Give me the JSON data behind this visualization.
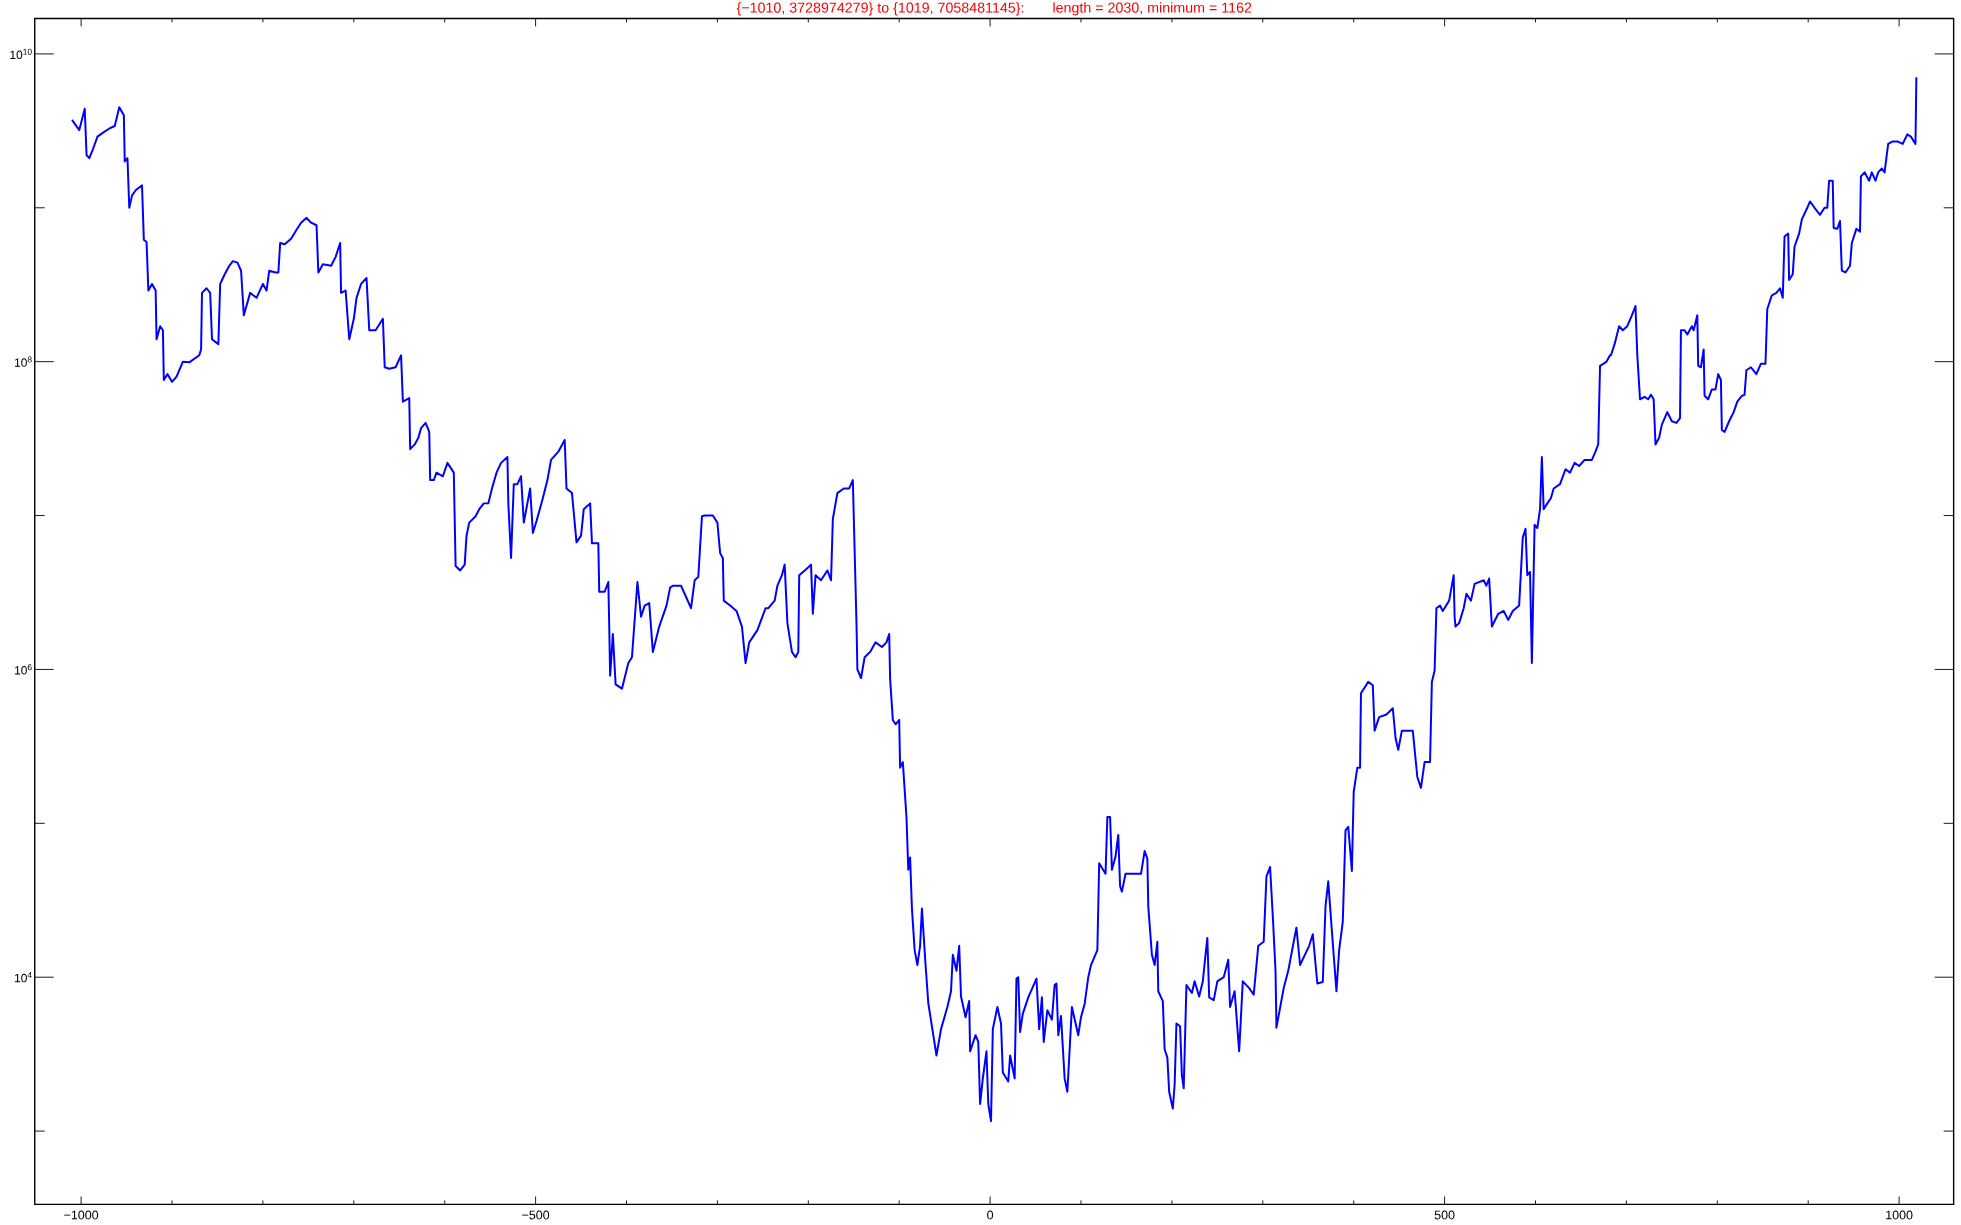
{
  "chart_data": {
    "type": "line",
    "title": "{−1010, 3728974279} to {1019, 7058481145}:",
    "subtitle": "length = 2030, minimum = 1162",
    "x": [
      -1010,
      -1002,
      -996,
      -994,
      -991,
      -987,
      -982,
      -975,
      -968,
      -963,
      -958,
      -953,
      -952,
      -949,
      -947,
      -944,
      -940,
      -933,
      -931,
      -928,
      -926,
      -922,
      -918,
      -917,
      -913,
      -910,
      -909,
      -905,
      -900,
      -895,
      -888,
      -881,
      -870,
      -868,
      -867,
      -862,
      -858,
      -856,
      -849,
      -847,
      -842,
      -837,
      -833,
      -828,
      -824,
      -821,
      -814,
      -807,
      -800,
      -796,
      -793,
      -786,
      -783,
      -781,
      -776,
      -769,
      -763,
      -758,
      -752,
      -747,
      -741,
      -739,
      -734,
      -725,
      -720,
      -715,
      -714,
      -709,
      -705,
      -700,
      -697,
      -692,
      -686,
      -683,
      -676,
      -668,
      -666,
      -661,
      -654,
      -648,
      -646,
      -639,
      -638,
      -633,
      -629,
      -626,
      -621,
      -617,
      -616,
      -612,
      -609,
      -602,
      -597,
      -590,
      -588,
      -583,
      -578,
      -576,
      -573,
      -566,
      -562,
      -557,
      -552,
      -548,
      -543,
      -538,
      -531,
      -530,
      -527,
      -524,
      -520,
      -516,
      -513,
      -506,
      -503,
      -499,
      -492,
      -487,
      -483,
      -475,
      -468,
      -466,
      -460,
      -455,
      -450,
      -447,
      -440,
      -438,
      -431,
      -430,
      -424,
      -420,
      -419,
      -418,
      -415,
      -412,
      -405,
      -398,
      -394,
      -388,
      -384,
      -380,
      -375,
      -371,
      -364,
      -356,
      -352,
      -349,
      -340,
      -329,
      -325,
      -321,
      -317,
      -314,
      -305,
      -300,
      -297,
      -294,
      -293,
      -286,
      -279,
      -273,
      -269,
      -265,
      -256,
      -247,
      -244,
      -237,
      -234,
      -229,
      -226,
      -223,
      -218,
      -214,
      -211,
      -210,
      -202,
      -197,
      -195,
      -192,
      -186,
      -179,
      -175,
      -173,
      -168,
      -161,
      -155,
      -151,
      -147,
      -146,
      -142,
      -138,
      -132,
      -126,
      -119,
      -114,
      -111,
      -110,
      -107,
      -104,
      -100,
      -99,
      -96,
      -92,
      -90,
      -88,
      -86,
      -83,
      -80,
      -77,
      -75,
      -71,
      -68,
      -59,
      -54,
      -47,
      -43,
      -41,
      -37,
      -34,
      -32,
      -27,
      -23,
      -22,
      -16,
      -13,
      -11,
      -8,
      -4,
      -2,
      1,
      3,
      8,
      12,
      14,
      20,
      22,
      27,
      29,
      31,
      33,
      36,
      42,
      51,
      54,
      57,
      59,
      63,
      68,
      71,
      73,
      75,
      78,
      82,
      85,
      90,
      97,
      100,
      104,
      108,
      111,
      118,
      120,
      127,
      129,
      132,
      134,
      138,
      141,
      143,
      145,
      149,
      157,
      166,
      170,
      173,
      174,
      178,
      181,
      184,
      185,
      190,
      192,
      195,
      197,
      201,
      203,
      205,
      209,
      211,
      213,
      216,
      222,
      225,
      230,
      234,
      237,
      239,
      241,
      246,
      250,
      257,
      262,
      264,
      269,
      274,
      278,
      285,
      290,
      295,
      301,
      304,
      308,
      311,
      314,
      315,
      323,
      328,
      334,
      337,
      341,
      351,
      355,
      360,
      366,
      369,
      372,
      376,
      381,
      384,
      388,
      391,
      394,
      398,
      400,
      404,
      407,
      408,
      416,
      421,
      423,
      428,
      436,
      443,
      446,
      449,
      453,
      465,
      470,
      474,
      478,
      484,
      486,
      489,
      491,
      495,
      498,
      505,
      510,
      511,
      512,
      516,
      521,
      524,
      529,
      533,
      543,
      546,
      549,
      552,
      559,
      565,
      570,
      575,
      582,
      586,
      589,
      591,
      594,
      596,
      599,
      602,
      605,
      607,
      609,
      613,
      617,
      620,
      627,
      633,
      638,
      643,
      648,
      654,
      662,
      666,
      669,
      671,
      675,
      678,
      682,
      683,
      687,
      692,
      696,
      701,
      706,
      710,
      712,
      715,
      720,
      724,
      727,
      730,
      732,
      736,
      739,
      745,
      750,
      755,
      759,
      760,
      764,
      767,
      772,
      774,
      778,
      779,
      782,
      785,
      786,
      790,
      794,
      798,
      801,
      804,
      805,
      808,
      813,
      818,
      822,
      827,
      830,
      832,
      837,
      843,
      848,
      853,
      855,
      860,
      865,
      869,
      872,
      874,
      878,
      879,
      883,
      885,
      890,
      893,
      899,
      902,
      907,
      913,
      918,
      921,
      923,
      927,
      928,
      932,
      935,
      937,
      941,
      946,
      948,
      953,
      957,
      958,
      962,
      967,
      970,
      974,
      977,
      981,
      984,
      988,
      993,
      998,
      1004,
      1009,
      1013,
      1018,
      1019
    ],
    "series": [
      {
        "color": "#0000ff",
        "values": [
          3728974279,
          3200000000.0,
          4400000000.0,
          2200000000.0,
          2100000000.0,
          2400000000.0,
          2900000000.0,
          3100000000.0,
          3300000000.0,
          3400000000.0,
          4500000000.0,
          4000000000.0,
          2000000000.0,
          2100000000.0,
          1000000000.0,
          1200000000.0,
          1300000000.0,
          1400000000.0,
          620000000.0,
          600000000.0,
          290000000.0,
          320000000.0,
          290000000.0,
          140000000.0,
          170000000.0,
          160000000.0,
          76000000.0,
          83000000.0,
          74000000.0,
          80000000.0,
          100000000.0,
          99000000.0,
          110000000.0,
          120000000.0,
          280000000.0,
          300000000.0,
          280000000.0,
          140000000.0,
          130000000.0,
          320000000.0,
          370000000.0,
          420000000.0,
          450000000.0,
          440000000.0,
          390000000.0,
          200000000.0,
          280000000.0,
          260000000.0,
          320000000.0,
          290000000.0,
          390000000.0,
          380000000.0,
          380000000.0,
          590000000.0,
          580000000.0,
          630000000.0,
          720000000.0,
          800000000.0,
          860000000.0,
          800000000.0,
          770000000.0,
          380000000.0,
          430000000.0,
          420000000.0,
          480000000.0,
          590000000.0,
          280000000.0,
          290000000.0,
          140000000.0,
          190000000.0,
          260000000.0,
          320000000.0,
          350000000.0,
          160000000.0,
          160000000.0,
          190000000.0,
          92000000.0,
          90000000.0,
          92000000.0,
          110000000.0,
          55000000.0,
          58000000.0,
          27000000.0,
          29000000.0,
          32000000.0,
          37000000.0,
          40000000.0,
          35000000.0,
          17000000.0,
          17000000.0,
          19000000.0,
          18000000.0,
          22000000.0,
          19000000.0,
          4700000.0,
          4400000.0,
          4800000.0,
          7400000.0,
          9000000.0,
          9900000.0,
          11000000.0,
          12000000.0,
          12000000.0,
          15000000.0,
          19000000.0,
          22000000.0,
          24000000.0,
          12000000.0,
          5300000.0,
          16000000.0,
          16000000.0,
          18000000.0,
          9000000.0,
          15000000.0,
          7700000.0,
          9200000.0,
          13000000.0,
          17000000.0,
          23000000.0,
          26000000.0,
          31000000.0,
          15000000.0,
          14000000.0,
          6700000.0,
          7400000.0,
          11000000.0,
          12000000.0,
          6600000.0,
          6600000.0,
          3200000.0,
          3200000.0,
          3700000.0,
          1900000.0,
          910000.0,
          1700000.0,
          800000.0,
          750000.0,
          1100000.0,
          1200000.0,
          3700000.0,
          2200000.0,
          2600000.0,
          2700000.0,
          1300000.0,
          1900000.0,
          2600000.0,
          3400000.0,
          3500000.0,
          3500000.0,
          2500000.0,
          3800000.0,
          4000000.0,
          9900000.0,
          10000000.0,
          10000000.0,
          9000000.0,
          5700000.0,
          5300000.0,
          2800000.0,
          2600000.0,
          2400000.0,
          1900000.0,
          1100000.0,
          1500000.0,
          1800000.0,
          2500000.0,
          2500000.0,
          2800000.0,
          3500000.0,
          4100000.0,
          4800000.0,
          2000000.0,
          1300000.0,
          1200000.0,
          1300000.0,
          4100000.0,
          4500000.0,
          4800000.0,
          2300000.0,
          4100000.0,
          3800000.0,
          4400000.0,
          3800000.0,
          9500000.0,
          14000000.0,
          15000000.0,
          15000000.0,
          17000000.0,
          2000000.0,
          1000000.0,
          880000.0,
          1200000.0,
          1300000.0,
          1500000.0,
          1400000.0,
          1500000.0,
          1700000.0,
          870000.0,
          470000.0,
          440000.0,
          470000.0,
          230000.0,
          250000.0,
          110000.0,
          50000.0,
          60000.0,
          28000.0,
          15000.0,
          12000.0,
          16000.0,
          28000.0,
          12000.0,
          6800.0,
          3100.0,
          4600.0,
          6400.0,
          8100.0,
          14000.0,
          11000.0,
          16000.0,
          7500.0,
          5500.0,
          7000.0,
          3300.0,
          4200.0,
          3800.0,
          1500.0,
          2200.0,
          3300.0,
          1500.0,
          1162,
          4600.0,
          6400.0,
          5000.0,
          2400.0,
          2100.0,
          3100.0,
          2200.0,
          9800.0,
          10000.0,
          4400.0,
          5800.0,
          7400.0,
          9800.0,
          4600.0,
          7400.0,
          3800.0,
          6100.0,
          5300.0,
          8900.0,
          9100.0,
          4200.0,
          5600.0,
          2200.0,
          1800.0,
          6400.0,
          4200.0,
          5500.0,
          6700.0,
          10000.0,
          12000.0,
          15000.0,
          55000.0,
          47000.0,
          110000.0,
          110000.0,
          50000.0,
          61000.0,
          84000.0,
          39000.0,
          36000.0,
          47000.0,
          47000.0,
          47000.0,
          66000.0,
          59000.0,
          29000.0,
          14000.0,
          12000.0,
          17000.0,
          8100.0,
          7000.0,
          3400.0,
          3000.0,
          1800.0,
          1400.0,
          2000.0,
          5000.0,
          4800.0,
          2300.0,
          1900.0,
          8900.0,
          7900.0,
          9400.0,
          7500.0,
          9400.0,
          14000.0,
          18000.0,
          7400.0,
          7100.0,
          9400.0,
          10000.0,
          13000.0,
          6400.0,
          8100.0,
          3300.0,
          9400.0,
          8500.0,
          7700.0,
          16000.0,
          17000.0,
          45000.0,
          52000.0,
          25000.0,
          11000.0,
          4700.0,
          8500.0,
          11000.0,
          17000.0,
          21000.0,
          12000.0,
          16000.0,
          19000.0,
          9100.0,
          9300.0,
          29000.0,
          42000.0,
          20000.0,
          8100.0,
          15000.0,
          23000.0,
          90000.0,
          95000.0,
          49000.0,
          160000.0,
          230000.0,
          230000.0,
          700000.0,
          830000.0,
          790000.0,
          400000.0,
          490000.0,
          510000.0,
          560000.0,
          360000.0,
          300000.0,
          400000.0,
          400000.0,
          200000.0,
          170000.0,
          250000.0,
          250000.0,
          830000.0,
          980000.0,
          2500000.0,
          2600000.0,
          2400000.0,
          2800000.0,
          4100000.0,
          2200000.0,
          1900000.0,
          2000000.0,
          2500000.0,
          3100000.0,
          2800000.0,
          3600000.0,
          3800000.0,
          3500000.0,
          3900000.0,
          1900000.0,
          2300000.0,
          2400000.0,
          2100000.0,
          2400000.0,
          2600000.0,
          7200000.0,
          8200000.0,
          4100000.0,
          4300000.0,
          1100000.0,
          8700000.0,
          8300000.0,
          11000000.0,
          24000000.0,
          11000000.0,
          12000000.0,
          13000000.0,
          15000000.0,
          16000000.0,
          20000000.0,
          19000000.0,
          22000000.0,
          21000000.0,
          23000000.0,
          23000000.0,
          26000000.0,
          29000000.0,
          94000000.0,
          97000000.0,
          100000000.0,
          110000000.0,
          110000000.0,
          130000000.0,
          170000000.0,
          160000000.0,
          170000000.0,
          200000000.0,
          230000000.0,
          110000000.0,
          57000000.0,
          59000000.0,
          57000000.0,
          61000000.0,
          57000000.0,
          29000000.0,
          32000000.0,
          39000000.0,
          47000000.0,
          41000000.0,
          40000000.0,
          43000000.0,
          160000000.0,
          160000000.0,
          150000000.0,
          170000000.0,
          160000000.0,
          200000000.0,
          94000000.0,
          92000000.0,
          120000000.0,
          60000000.0,
          57000000.0,
          66000000.0,
          66000000.0,
          83000000.0,
          76000000.0,
          36000000.0,
          35000000.0,
          41000000.0,
          47000000.0,
          55000000.0,
          60000000.0,
          61000000.0,
          88000000.0,
          92000000.0,
          83000000.0,
          97000000.0,
          97000000.0,
          220000000.0,
          270000000.0,
          280000000.0,
          300000000.0,
          260000000.0,
          650000000.0,
          680000000.0,
          340000000.0,
          370000000.0,
          560000000.0,
          680000000.0,
          840000000.0,
          1000000000.0,
          1100000000.0,
          1000000000.0,
          900000000.0,
          1000000000.0,
          1000000000.0,
          1500000000.0,
          1500000000.0,
          740000000.0,
          730000000.0,
          820000000.0,
          390000000.0,
          380000000.0,
          420000000.0,
          590000000.0,
          730000000.0,
          700000000.0,
          1600000000.0,
          1700000000.0,
          1500000000.0,
          1700000000.0,
          1500000000.0,
          1700000000.0,
          1800000000.0,
          1700000000.0,
          2600000000.0,
          2700000000.0,
          2700000000.0,
          2600000000.0,
          3000000000.0,
          2900000000.0,
          2600000000.0,
          7058481145
        ]
      }
    ],
    "xlim": [
      -1051,
      1060
    ],
    "ylim": [
      334,
      17000000000
    ],
    "xticks": [
      {
        "value": -1000,
        "label": "−1000"
      },
      {
        "value": -900,
        "label": null
      },
      {
        "value": -800,
        "label": null
      },
      {
        "value": -700,
        "label": null
      },
      {
        "value": -600,
        "label": null
      },
      {
        "value": -500,
        "label": "−500"
      },
      {
        "value": -400,
        "label": null
      },
      {
        "value": -300,
        "label": null
      },
      {
        "value": -200,
        "label": null
      },
      {
        "value": -100,
        "label": null
      },
      0,
      {
        "value": 100,
        "label": null
      },
      {
        "value": 200,
        "label": null
      },
      {
        "value": 300,
        "label": null
      },
      {
        "value": 400,
        "label": null
      },
      500,
      {
        "value": 600,
        "label": null
      },
      {
        "value": 700,
        "label": null
      },
      {
        "value": 800,
        "label": null
      },
      {
        "value": 900,
        "label": null
      },
      1000
    ],
    "yticks": [
      {
        "value": 1000,
        "label": null
      },
      {
        "value": 10000,
        "label": "10$^{4}$"
      },
      {
        "value": 100000,
        "label": null
      },
      {
        "value": 1000000,
        "label": "10$^{6}$"
      },
      {
        "value": 10000000,
        "label": null
      },
      {
        "value": 100000000,
        "label": "10$^{8}$"
      },
      {
        "value": 1000000000,
        "label": null
      },
      {
        "value": 10000000000,
        "label": "10$^{10}$"
      }
    ],
    "log": "y"
  }
}
